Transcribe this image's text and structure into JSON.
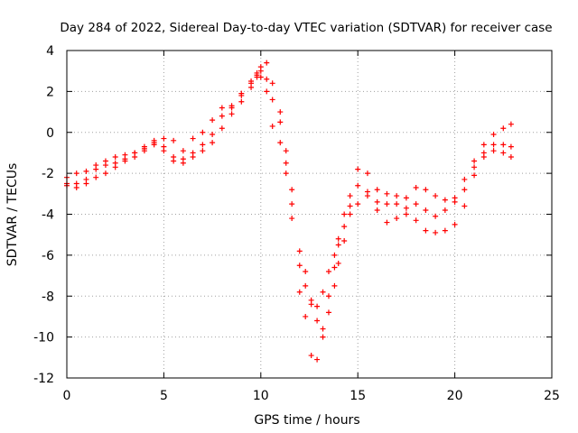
{
  "chart_data": {
    "type": "scatter",
    "title": "Day 284 of 2022, Sidereal Day-to-day VTEC variation (SDTVAR) for receiver case",
    "xlabel": "GPS time / hours",
    "ylabel": "SDTVAR / TECUs",
    "xlim": [
      0,
      25
    ],
    "ylim": [
      -12,
      4
    ],
    "xticks": [
      0,
      5,
      10,
      15,
      20,
      25
    ],
    "yticks": [
      -12,
      -10,
      -8,
      -6,
      -4,
      -2,
      0,
      2,
      4
    ],
    "grid": true,
    "marker": "+",
    "series_color": "#ff0000",
    "series": [
      {
        "x": [
          0,
          0.5,
          1,
          1.5,
          2,
          2.5,
          3,
          3.5,
          4,
          4.5,
          5,
          5.5,
          6,
          6.5,
          7,
          7.5,
          8,
          8.5,
          9,
          9.5,
          9.8,
          10,
          10.3,
          10.6,
          11,
          11.3,
          11.6,
          12,
          12.3,
          12.6,
          12.9,
          13.2,
          13.5,
          13.8,
          14,
          14.3,
          14.6,
          15,
          15.5,
          16,
          16.5,
          17,
          17.5,
          18,
          18.5,
          19,
          19.5,
          20,
          20.5,
          21,
          21.5,
          22,
          22.5,
          22.9
        ],
        "y": [
          -2.5,
          -2.5,
          -2.3,
          -1.8,
          -1.6,
          -1.5,
          -1.3,
          -1.0,
          -0.8,
          -0.6,
          -0.9,
          -1.4,
          -1.3,
          -1.0,
          -0.6,
          -0.1,
          0.8,
          1.2,
          1.8,
          2.4,
          2.9,
          3.0,
          2.6,
          1.6,
          0.5,
          -1.5,
          -3.5,
          -6.5,
          -7.5,
          -8.4,
          -8.5,
          -7.8,
          -6.8,
          -6.0,
          -5.2,
          -4.0,
          -3.1,
          -2.6,
          -3.1,
          -3.4,
          -3.5,
          -3.5,
          -3.7,
          -3.5,
          -3.8,
          -4.1,
          -3.8,
          -3.4,
          -2.8,
          -1.7,
          -1.0,
          -0.6,
          -0.6,
          -0.7
        ]
      },
      {
        "x": [
          0,
          0.5,
          1,
          1.5,
          2,
          2.5,
          3,
          3.5,
          4,
          4.5,
          5,
          5.5,
          6,
          6.5,
          7,
          7.5,
          8,
          8.5,
          9,
          9.5,
          9.8,
          10,
          10.3,
          10.6,
          11,
          11.3,
          11.6,
          12,
          12.3,
          12.6,
          12.9,
          13.2,
          13.5,
          13.8,
          14,
          14.3,
          14.6,
          15,
          15.5,
          16,
          16.5,
          17,
          17.5,
          18,
          18.5,
          19,
          19.5,
          20,
          20.5,
          21,
          21.5,
          22,
          22.5,
          22.9
        ],
        "y": [
          -2.2,
          -2.0,
          -1.9,
          -1.6,
          -1.4,
          -1.2,
          -1.1,
          -1.0,
          -0.7,
          -0.4,
          -0.7,
          -1.2,
          -1.5,
          -1.2,
          -0.9,
          -0.5,
          0.2,
          0.9,
          1.5,
          2.2,
          2.7,
          3.2,
          3.4,
          2.4,
          1.0,
          -0.9,
          -2.8,
          -5.8,
          -6.8,
          -8.2,
          -9.2,
          -9.6,
          -8.8,
          -7.5,
          -6.4,
          -5.3,
          -4.0,
          -3.5,
          -2.9,
          -3.8,
          -4.4,
          -4.2,
          -4.0,
          -4.3,
          -4.8,
          -4.9,
          -4.8,
          -4.5,
          -3.6,
          -2.1,
          -1.2,
          -0.9,
          -1.0,
          -1.2
        ]
      },
      {
        "x": [
          0,
          0.5,
          1,
          1.5,
          2,
          2.5,
          3,
          3.5,
          4,
          4.5,
          5,
          5.5,
          6,
          6.5,
          7,
          7.5,
          8,
          8.5,
          9,
          9.5,
          9.8,
          10,
          10.3,
          10.6,
          11,
          11.3,
          11.6,
          12,
          12.3,
          12.6,
          12.9,
          13.2,
          13.5,
          13.8,
          14,
          14.3,
          14.6,
          15,
          15.5,
          16,
          16.5,
          17,
          17.5,
          18,
          18.5,
          19,
          19.5,
          20,
          20.5,
          21,
          21.5,
          22,
          22.5,
          22.9
        ],
        "y": [
          -2.6,
          -2.7,
          -2.5,
          -2.2,
          -2.0,
          -1.7,
          -1.4,
          -1.2,
          -0.9,
          -0.5,
          -0.3,
          -0.4,
          -0.9,
          -0.3,
          0.0,
          0.6,
          1.2,
          1.3,
          1.9,
          2.5,
          2.8,
          2.7,
          2.0,
          0.3,
          -0.5,
          -2.0,
          -4.2,
          -7.8,
          -9.0,
          -10.9,
          -11.1,
          -10.0,
          -8.0,
          -6.6,
          -5.5,
          -4.6,
          -3.6,
          -1.8,
          -2.0,
          -2.8,
          -3.0,
          -3.1,
          -3.2,
          -2.7,
          -2.8,
          -3.1,
          -3.3,
          -3.2,
          -2.3,
          -1.4,
          -0.6,
          -0.1,
          0.2,
          0.4
        ]
      }
    ]
  }
}
